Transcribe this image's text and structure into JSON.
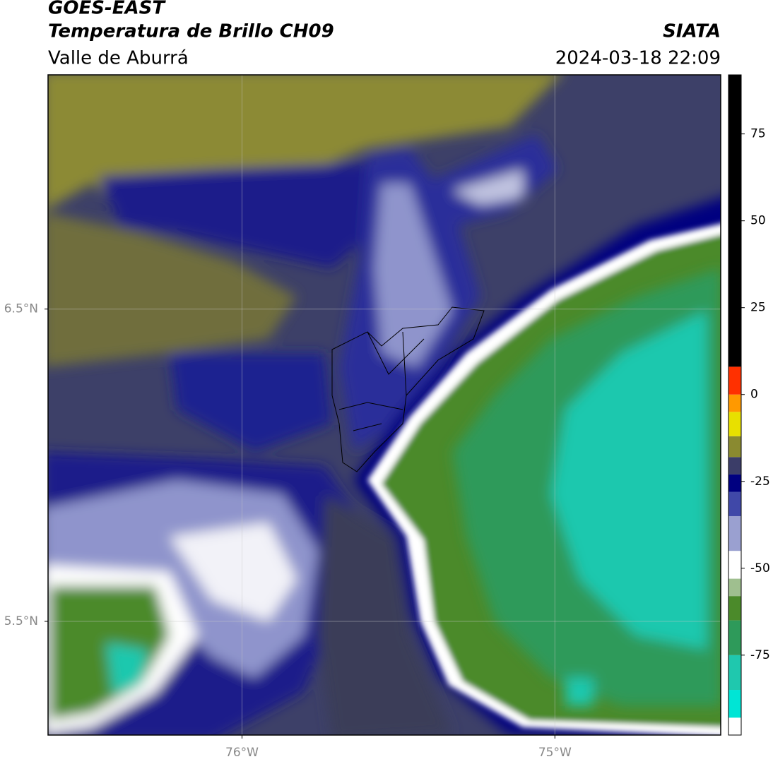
{
  "header": {
    "title": "GOES-EAST",
    "subtitle": "Temperatura de Brillo CH09",
    "region": "Valle de Aburrá",
    "source": "SIATA",
    "timestamp": "2024-03-18 22:09"
  },
  "map": {
    "lat_lim": [
      5.136,
      7.25
    ],
    "lon_lim": [
      -76.62,
      -74.47
    ],
    "lat_ticks": [
      {
        "value": 6.5,
        "label": "6.5°N"
      },
      {
        "value": 5.5,
        "label": "5.5°N"
      }
    ],
    "lon_ticks": [
      {
        "value": -76,
        "label": "76°W"
      },
      {
        "value": -75,
        "label": "75°W"
      }
    ],
    "grid": true
  },
  "colorbar": {
    "lim": [
      -98,
      92
    ],
    "ticks": [
      75,
      50,
      25,
      0,
      -25,
      -50,
      -75
    ],
    "stops": [
      {
        "value": -98,
        "color": "#ffffff"
      },
      {
        "value": -93,
        "color": "#00e5d5"
      },
      {
        "value": -85,
        "color": "#1fc8ae"
      },
      {
        "value": -75,
        "color": "#2e9a5a"
      },
      {
        "value": -65,
        "color": "#4b8a2a"
      },
      {
        "value": -58,
        "color": "#9fbf8f"
      },
      {
        "value": -53,
        "color": "#ffffff"
      },
      {
        "value": -45,
        "color": "#9aa0d0"
      },
      {
        "value": -35,
        "color": "#4048a8"
      },
      {
        "value": -28,
        "color": "#000080"
      },
      {
        "value": -23,
        "color": "#3b3d68"
      },
      {
        "value": -18,
        "color": "#8a8a30"
      },
      {
        "value": -12,
        "color": "#e8e000"
      },
      {
        "value": -5,
        "color": "#ff9900"
      },
      {
        "value": 0,
        "color": "#ff3000"
      },
      {
        "value": 8,
        "color": "#000000"
      }
    ]
  }
}
